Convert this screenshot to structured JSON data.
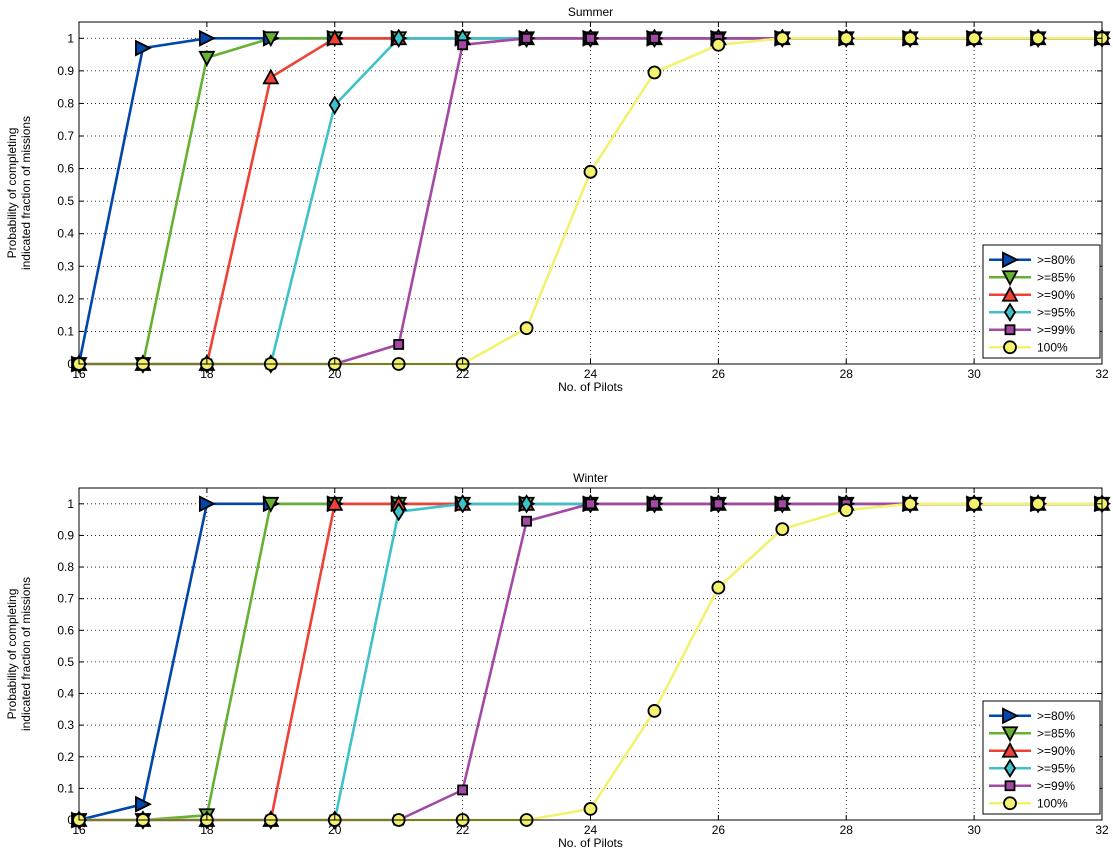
{
  "chart_data": [
    {
      "type": "line",
      "title": "Summer",
      "xlabel": "No. of Pilots",
      "ylabel_lines": [
        "Probability of completing",
        "indicated fraction of missions"
      ],
      "xlim": [
        16,
        32
      ],
      "ylim": [
        0,
        1.05
      ],
      "x_ticks": [
        16,
        18,
        20,
        22,
        24,
        26,
        28,
        30,
        32
      ],
      "y_ticks": [
        0,
        0.1,
        0.2,
        0.3,
        0.4,
        0.5,
        0.6,
        0.7,
        0.8,
        0.9,
        1
      ],
      "y_tick_labels": [
        "0",
        "0.1",
        "0.2",
        "0.3",
        "0.4",
        "0.5",
        "0.6",
        "0.7",
        "0.8",
        "0.9",
        "1"
      ],
      "grid": true,
      "legend_position": "bottom-right",
      "x": [
        16,
        17,
        18,
        19,
        20,
        21,
        22,
        23,
        24,
        25,
        26,
        27,
        28,
        29,
        30,
        31,
        32
      ],
      "series": [
        {
          "name": ">=80%",
          "color": "#0047AB",
          "marker": "triangle-right",
          "values": [
            0,
            0.97,
            1,
            1,
            1,
            1,
            1,
            1,
            1,
            1,
            1,
            1,
            1,
            1,
            1,
            1,
            1
          ]
        },
        {
          "name": ">=85%",
          "color": "#66B032",
          "marker": "triangle-down",
          "values": [
            0,
            0,
            0.94,
            1,
            1,
            1,
            1,
            1,
            1,
            1,
            1,
            1,
            1,
            1,
            1,
            1,
            1
          ]
        },
        {
          "name": ">=90%",
          "color": "#EF4136",
          "marker": "triangle-up",
          "values": [
            0,
            0,
            0,
            0.88,
            1,
            1,
            1,
            1,
            1,
            1,
            1,
            1,
            1,
            1,
            1,
            1,
            1
          ]
        },
        {
          "name": ">=95%",
          "color": "#3FC1C9",
          "marker": "diamond",
          "values": [
            0,
            0,
            0,
            0,
            0.795,
            1,
            1,
            1,
            1,
            1,
            1,
            1,
            1,
            1,
            1,
            1,
            1
          ]
        },
        {
          "name": ">=99%",
          "color": "#A349A4",
          "marker": "square",
          "values": [
            0,
            0,
            0,
            0,
            0,
            0.06,
            0.98,
            1,
            1,
            1,
            1,
            1,
            1,
            1,
            1,
            1,
            1
          ]
        },
        {
          "name": "100%",
          "color": "#F2F26E",
          "marker": "circle",
          "values": [
            0,
            0,
            0,
            0,
            0,
            0,
            0,
            0.11,
            0.59,
            0.895,
            0.98,
            1,
            1,
            1,
            1,
            1,
            1
          ]
        }
      ]
    },
    {
      "type": "line",
      "title": "Winter",
      "xlabel": "No. of Pilots",
      "ylabel_lines": [
        "Probability of completing",
        "indicated fraction of missions"
      ],
      "xlim": [
        16,
        32
      ],
      "ylim": [
        0,
        1.05
      ],
      "x_ticks": [
        16,
        18,
        20,
        22,
        24,
        26,
        28,
        30,
        32
      ],
      "y_ticks": [
        0,
        0.1,
        0.2,
        0.3,
        0.4,
        0.5,
        0.6,
        0.7,
        0.8,
        0.9,
        1
      ],
      "y_tick_labels": [
        "0",
        "0.1",
        "0.2",
        "0.3",
        "0.4",
        "0.5",
        "0.6",
        "0.7",
        "0.8",
        "0.9",
        "1"
      ],
      "grid": true,
      "legend_position": "bottom-right",
      "x": [
        16,
        17,
        18,
        19,
        20,
        21,
        22,
        23,
        24,
        25,
        26,
        27,
        28,
        29,
        30,
        31,
        32
      ],
      "series": [
        {
          "name": ">=80%",
          "color": "#0047AB",
          "marker": "triangle-right",
          "values": [
            0,
            0.05,
            1,
            1,
            1,
            1,
            1,
            1,
            1,
            1,
            1,
            1,
            1,
            1,
            1,
            1,
            1
          ]
        },
        {
          "name": ">=85%",
          "color": "#66B032",
          "marker": "triangle-down",
          "values": [
            0,
            0,
            0.015,
            1,
            1,
            1,
            1,
            1,
            1,
            1,
            1,
            1,
            1,
            1,
            1,
            1,
            1
          ]
        },
        {
          "name": ">=90%",
          "color": "#EF4136",
          "marker": "triangle-up",
          "values": [
            0,
            0,
            0,
            0,
            1,
            1,
            1,
            1,
            1,
            1,
            1,
            1,
            1,
            1,
            1,
            1,
            1
          ]
        },
        {
          "name": ">=95%",
          "color": "#3FC1C9",
          "marker": "diamond",
          "values": [
            0,
            0,
            0,
            0,
            0,
            0.975,
            1,
            1,
            1,
            1,
            1,
            1,
            1,
            1,
            1,
            1,
            1
          ]
        },
        {
          "name": ">=99%",
          "color": "#A349A4",
          "marker": "square",
          "values": [
            0,
            0,
            0,
            0,
            0,
            0,
            0.095,
            0.945,
            1,
            1,
            1,
            1,
            1,
            1,
            1,
            1,
            1
          ]
        },
        {
          "name": "100%",
          "color": "#F2F26E",
          "marker": "circle",
          "values": [
            0,
            0,
            0,
            0,
            0,
            0,
            0,
            0,
            0.035,
            0.345,
            0.735,
            0.92,
            0.98,
            1,
            1,
            1,
            1
          ]
        }
      ]
    }
  ]
}
